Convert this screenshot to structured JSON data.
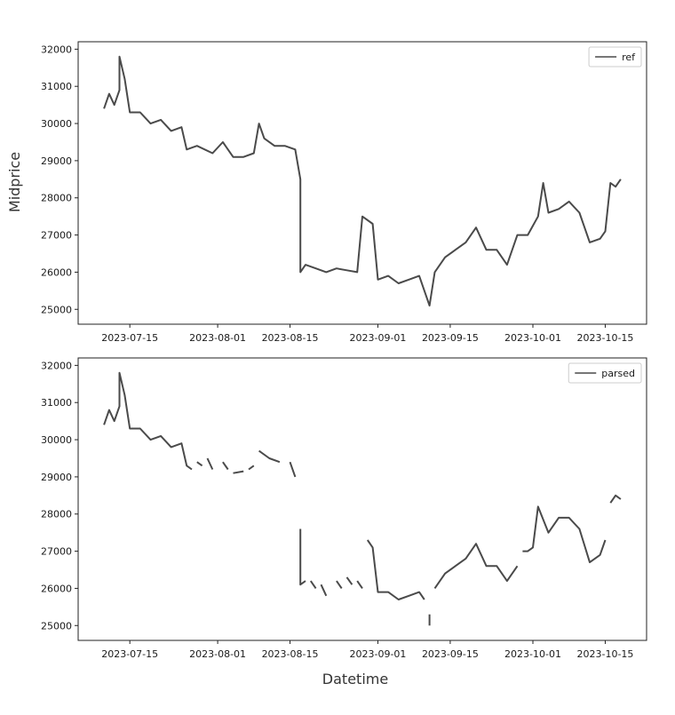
{
  "figure": {
    "ylabel": "Midprice",
    "xlabel": "Datetime"
  },
  "chart_data": [
    {
      "type": "line",
      "legend": "top-right",
      "grid": false,
      "color": "#4a4a4a",
      "xlim": [
        "2023-07-05",
        "2023-10-23"
      ],
      "ylim": [
        24600,
        32200
      ],
      "x_ticks": [
        "2023-07-15",
        "2023-08-01",
        "2023-08-15",
        "2023-09-01",
        "2023-09-15",
        "2023-10-01",
        "2023-10-15"
      ],
      "y_ticks": [
        25000,
        26000,
        27000,
        28000,
        29000,
        30000,
        31000,
        32000
      ],
      "series": [
        {
          "name": "ref",
          "segments": [
            [
              [
                "2023-07-10",
                30400
              ],
              [
                "2023-07-11",
                30800
              ],
              [
                "2023-07-12",
                30500
              ],
              [
                "2023-07-13",
                30900
              ],
              [
                "2023-07-13",
                31800
              ],
              [
                "2023-07-14",
                31200
              ],
              [
                "2023-07-15",
                30300
              ],
              [
                "2023-07-17",
                30300
              ],
              [
                "2023-07-19",
                30000
              ],
              [
                "2023-07-21",
                30100
              ],
              [
                "2023-07-23",
                29800
              ],
              [
                "2023-07-25",
                29900
              ],
              [
                "2023-07-26",
                29300
              ],
              [
                "2023-07-28",
                29400
              ],
              [
                "2023-07-31",
                29200
              ],
              [
                "2023-08-02",
                29500
              ],
              [
                "2023-08-04",
                29100
              ],
              [
                "2023-08-06",
                29100
              ],
              [
                "2023-08-08",
                29200
              ],
              [
                "2023-08-09",
                30000
              ],
              [
                "2023-08-10",
                29600
              ],
              [
                "2023-08-12",
                29400
              ],
              [
                "2023-08-14",
                29400
              ],
              [
                "2023-08-16",
                29300
              ],
              [
                "2023-08-17",
                28500
              ],
              [
                "2023-08-17",
                26000
              ],
              [
                "2023-08-18",
                26200
              ],
              [
                "2023-08-20",
                26100
              ],
              [
                "2023-08-22",
                26000
              ],
              [
                "2023-08-24",
                26100
              ],
              [
                "2023-08-26",
                26050
              ],
              [
                "2023-08-28",
                26000
              ],
              [
                "2023-08-29",
                27500
              ],
              [
                "2023-08-31",
                27300
              ],
              [
                "2023-09-01",
                25800
              ],
              [
                "2023-09-03",
                25900
              ],
              [
                "2023-09-05",
                25700
              ],
              [
                "2023-09-07",
                25800
              ],
              [
                "2023-09-09",
                25900
              ],
              [
                "2023-09-11",
                25100
              ],
              [
                "2023-09-12",
                26000
              ],
              [
                "2023-09-14",
                26400
              ],
              [
                "2023-09-16",
                26600
              ],
              [
                "2023-09-18",
                26800
              ],
              [
                "2023-09-20",
                27200
              ],
              [
                "2023-09-22",
                26600
              ],
              [
                "2023-09-24",
                26600
              ],
              [
                "2023-09-26",
                26200
              ],
              [
                "2023-09-28",
                27000
              ],
              [
                "2023-09-30",
                27000
              ],
              [
                "2023-10-02",
                27500
              ],
              [
                "2023-10-03",
                28400
              ],
              [
                "2023-10-04",
                27600
              ],
              [
                "2023-10-06",
                27700
              ],
              [
                "2023-10-08",
                27900
              ],
              [
                "2023-10-10",
                27600
              ],
              [
                "2023-10-12",
                26800
              ],
              [
                "2023-10-14",
                26900
              ],
              [
                "2023-10-15",
                27100
              ],
              [
                "2023-10-16",
                28400
              ],
              [
                "2023-10-17",
                28300
              ],
              [
                "2023-10-18",
                28500
              ]
            ]
          ]
        }
      ]
    },
    {
      "type": "line",
      "legend": "top-right",
      "grid": false,
      "color": "#4a4a4a",
      "xlim": [
        "2023-07-05",
        "2023-10-23"
      ],
      "ylim": [
        24600,
        32200
      ],
      "x_ticks": [
        "2023-07-15",
        "2023-08-01",
        "2023-08-15",
        "2023-09-01",
        "2023-09-15",
        "2023-10-01",
        "2023-10-15"
      ],
      "y_ticks": [
        25000,
        26000,
        27000,
        28000,
        29000,
        30000,
        31000,
        32000
      ],
      "series": [
        {
          "name": "parsed",
          "segments": [
            [
              [
                "2023-07-10",
                30400
              ],
              [
                "2023-07-11",
                30800
              ],
              [
                "2023-07-12",
                30500
              ],
              [
                "2023-07-13",
                30900
              ],
              [
                "2023-07-13",
                31800
              ],
              [
                "2023-07-14",
                31200
              ],
              [
                "2023-07-15",
                30300
              ],
              [
                "2023-07-17",
                30300
              ],
              [
                "2023-07-19",
                30000
              ],
              [
                "2023-07-21",
                30100
              ],
              [
                "2023-07-23",
                29800
              ],
              [
                "2023-07-25",
                29900
              ],
              [
                "2023-07-26",
                29300
              ],
              [
                "2023-07-27",
                29200
              ]
            ],
            [
              [
                "2023-07-28",
                29400
              ],
              [
                "2023-07-29",
                29300
              ]
            ],
            [
              [
                "2023-07-30",
                29500
              ],
              [
                "2023-07-31",
                29200
              ]
            ],
            [
              [
                "2023-08-02",
                29400
              ],
              [
                "2023-08-03",
                29200
              ]
            ],
            [
              [
                "2023-08-04",
                29100
              ],
              [
                "2023-08-06",
                29150
              ]
            ],
            [
              [
                "2023-08-07",
                29200
              ],
              [
                "2023-08-08",
                29300
              ]
            ],
            [
              [
                "2023-08-09",
                29700
              ],
              [
                "2023-08-11",
                29500
              ],
              [
                "2023-08-13",
                29400
              ]
            ],
            [
              [
                "2023-08-15",
                29400
              ],
              [
                "2023-08-16",
                29000
              ]
            ],
            [
              [
                "2023-08-17",
                27600
              ],
              [
                "2023-08-17",
                26100
              ],
              [
                "2023-08-18",
                26200
              ]
            ],
            [
              [
                "2023-08-19",
                26200
              ],
              [
                "2023-08-20",
                26000
              ]
            ],
            [
              [
                "2023-08-21",
                26100
              ],
              [
                "2023-08-22",
                25800
              ]
            ],
            [
              [
                "2023-08-24",
                26200
              ],
              [
                "2023-08-25",
                26000
              ]
            ],
            [
              [
                "2023-08-26",
                26300
              ],
              [
                "2023-08-27",
                26100
              ]
            ],
            [
              [
                "2023-08-28",
                26200
              ],
              [
                "2023-08-29",
                26000
              ]
            ],
            [
              [
                "2023-08-30",
                27300
              ],
              [
                "2023-08-31",
                27100
              ],
              [
                "2023-09-01",
                25900
              ],
              [
                "2023-09-03",
                25900
              ],
              [
                "2023-09-05",
                25700
              ],
              [
                "2023-09-07",
                25800
              ],
              [
                "2023-09-09",
                25900
              ],
              [
                "2023-09-10",
                25700
              ]
            ],
            [
              [
                "2023-09-11",
                25300
              ],
              [
                "2023-09-11",
                25000
              ]
            ],
            [
              [
                "2023-09-12",
                26000
              ],
              [
                "2023-09-14",
                26400
              ],
              [
                "2023-09-16",
                26600
              ],
              [
                "2023-09-18",
                26800
              ],
              [
                "2023-09-20",
                27200
              ],
              [
                "2023-09-22",
                26600
              ],
              [
                "2023-09-24",
                26600
              ],
              [
                "2023-09-26",
                26200
              ],
              [
                "2023-09-28",
                26600
              ]
            ],
            [
              [
                "2023-09-29",
                27000
              ],
              [
                "2023-09-30",
                27000
              ],
              [
                "2023-10-01",
                27100
              ],
              [
                "2023-10-02",
                28200
              ],
              [
                "2023-10-04",
                27500
              ],
              [
                "2023-10-06",
                27900
              ],
              [
                "2023-10-08",
                27900
              ],
              [
                "2023-10-10",
                27600
              ],
              [
                "2023-10-12",
                26700
              ],
              [
                "2023-10-14",
                26900
              ],
              [
                "2023-10-15",
                27300
              ]
            ],
            [
              [
                "2023-10-16",
                28300
              ],
              [
                "2023-10-17",
                28500
              ],
              [
                "2023-10-18",
                28400
              ]
            ]
          ]
        }
      ]
    }
  ]
}
